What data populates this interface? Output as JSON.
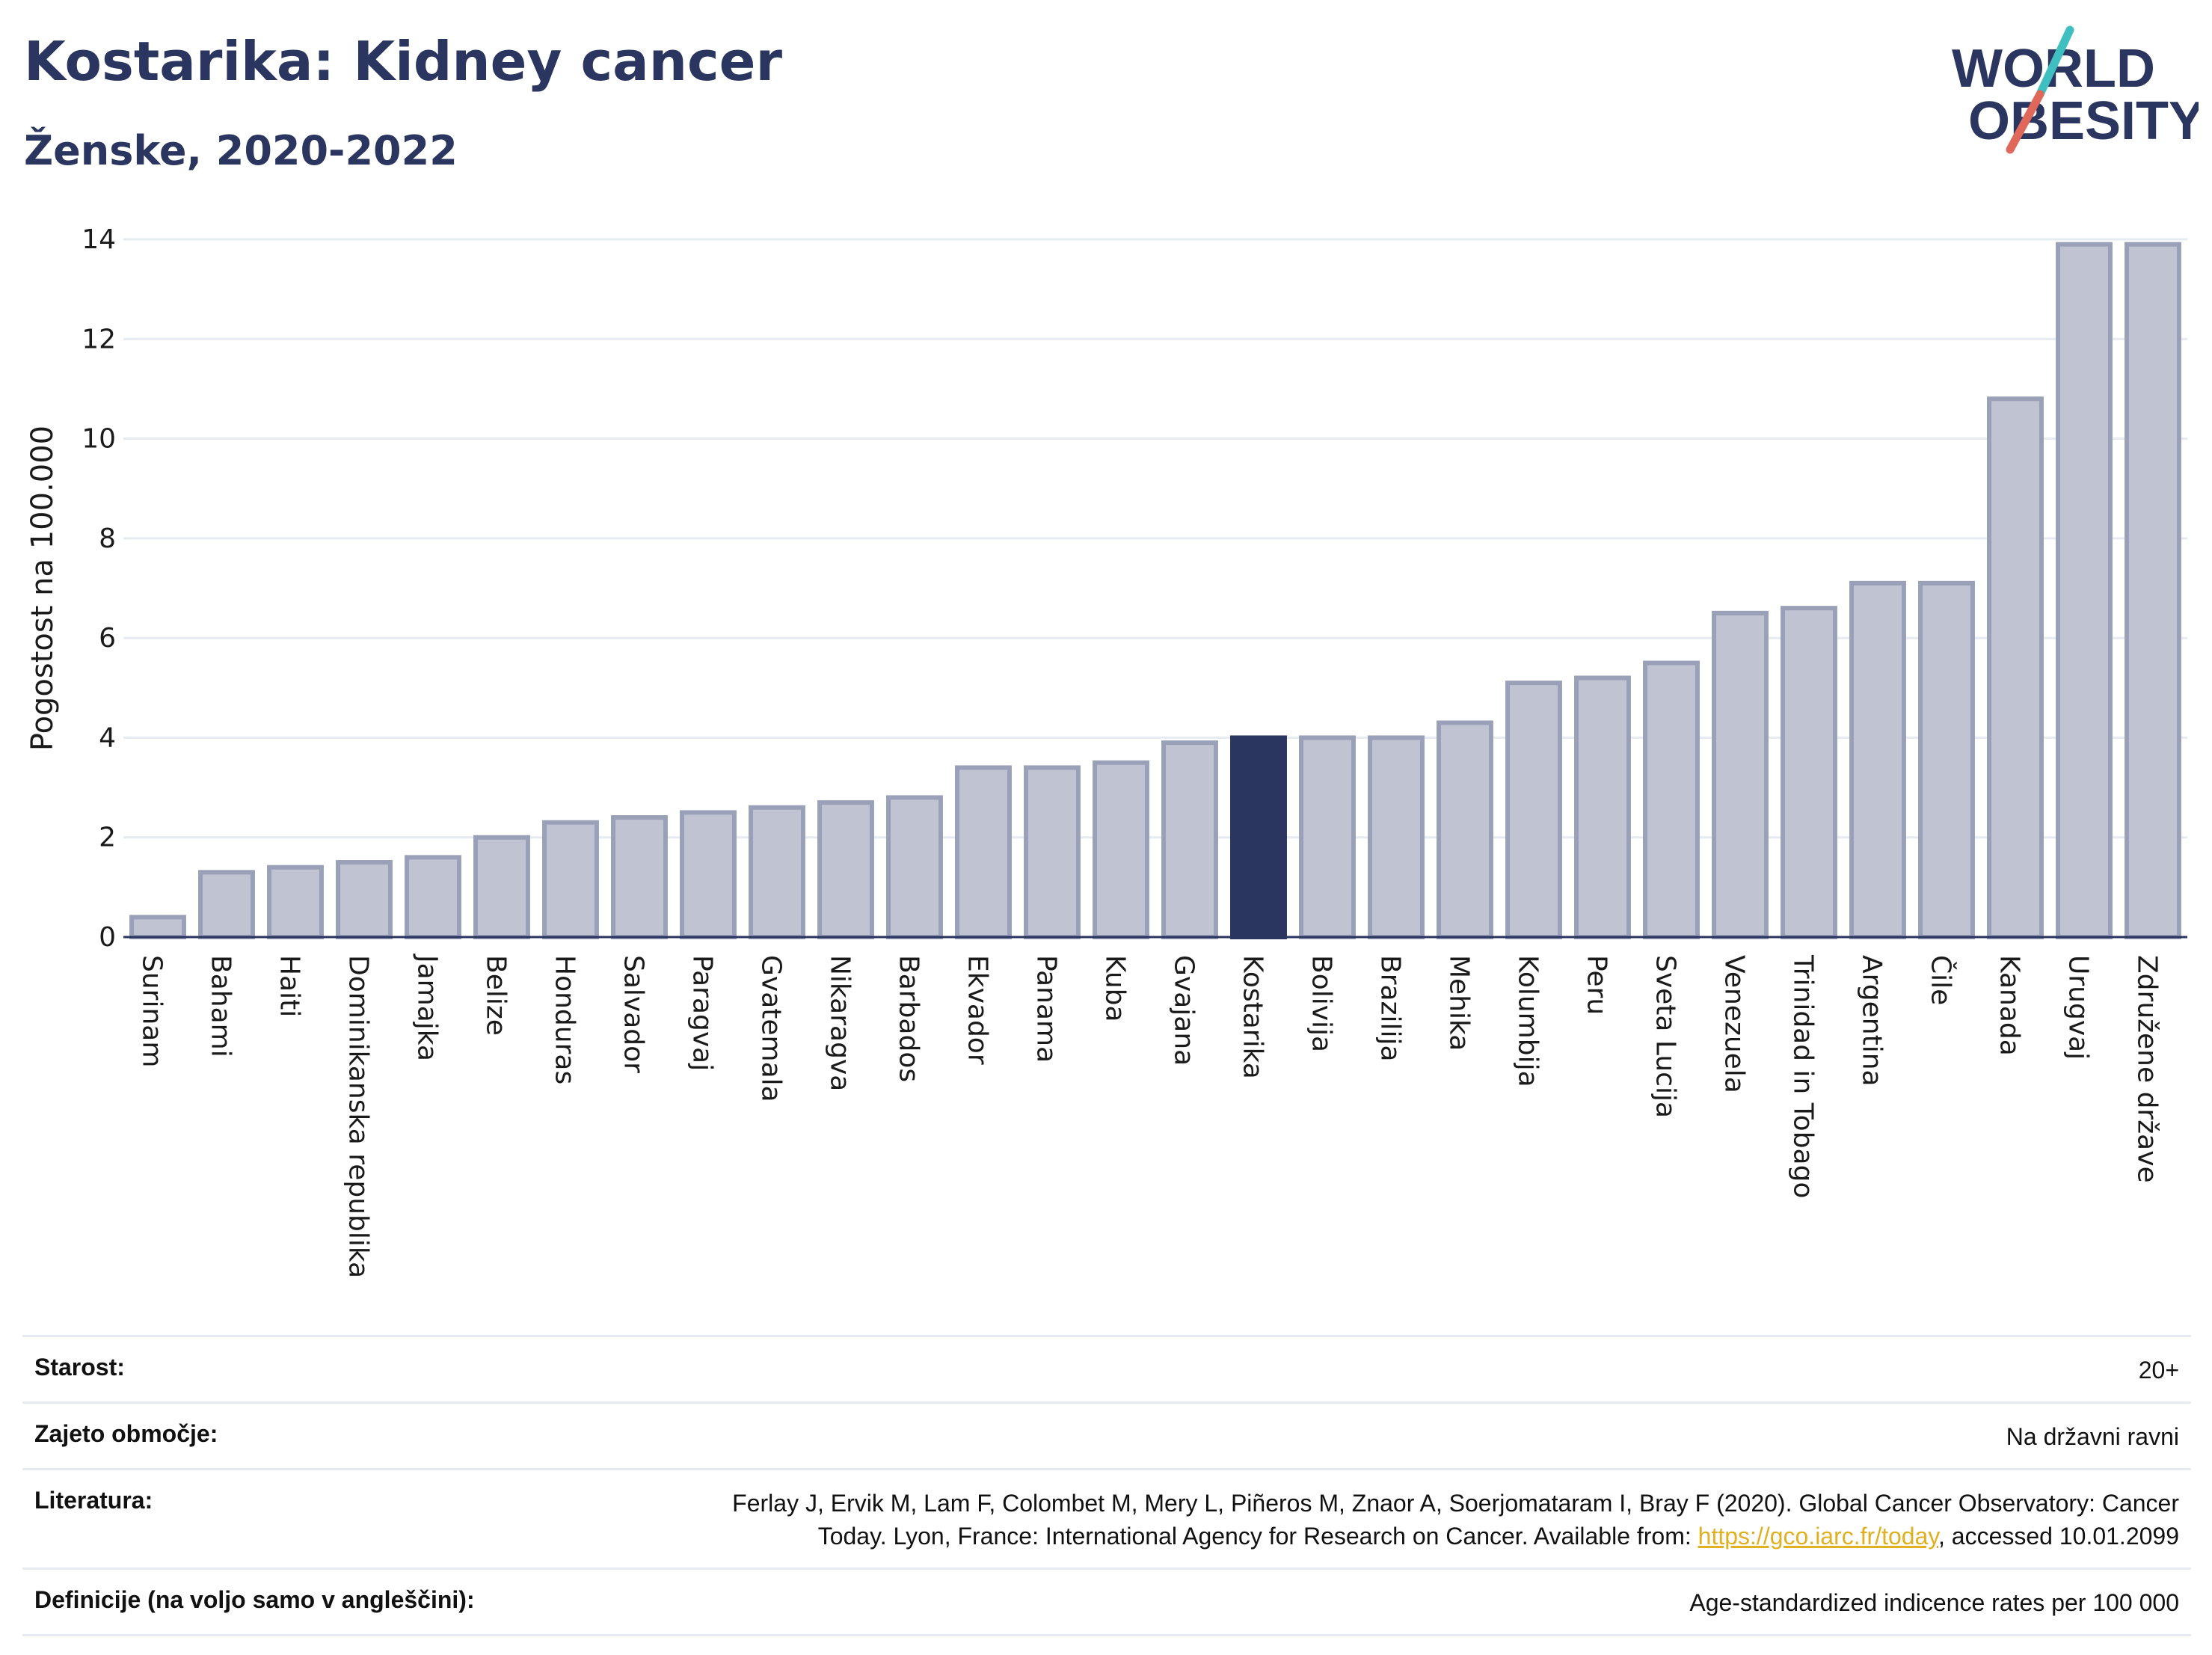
{
  "header": {
    "title": "Kostarika: Kidney cancer",
    "subtitle": "Ženske, 2020-2022"
  },
  "logo": {
    "line1": "WORLD",
    "line2": "OBESITY"
  },
  "chart_data": {
    "type": "bar",
    "ylabel": "Pogostost na 100.000",
    "xlabel": "",
    "ylim": [
      0,
      14
    ],
    "yticks": [
      0,
      2,
      4,
      6,
      8,
      10,
      12,
      14
    ],
    "grid": true,
    "highlight": "Kostarika",
    "colors": {
      "bar": "#c0c4d2",
      "bar_border": "#9aa0b8",
      "highlight": "#2a3560"
    },
    "categories": [
      "Surinam",
      "Bahami",
      "Haiti",
      "Dominikanska republika",
      "Jamajka",
      "Belize",
      "Honduras",
      "Salvador",
      "Paragvaj",
      "Gvatemala",
      "Nikaragva",
      "Barbados",
      "Ekvador",
      "Panama",
      "Kuba",
      "Gvajana",
      "Kostarika",
      "Bolivija",
      "Brazilija",
      "Mehika",
      "Kolumbija",
      "Peru",
      "Sveta Lucija",
      "Venezuela",
      "Trinidad in Tobago",
      "Argentina",
      "Čile",
      "Kanada",
      "Urugvaj",
      "Združene države"
    ],
    "values": [
      0.4,
      1.3,
      1.4,
      1.5,
      1.6,
      2.0,
      2.3,
      2.4,
      2.5,
      2.6,
      2.7,
      2.8,
      3.4,
      3.4,
      3.5,
      3.9,
      4.0,
      4.0,
      4.0,
      4.3,
      5.1,
      5.2,
      5.5,
      6.5,
      6.6,
      7.1,
      7.1,
      10.8,
      13.9,
      13.9
    ]
  },
  "info": {
    "age_label": "Starost:",
    "age_value": "20+",
    "area_label": "Zajeto območje:",
    "area_value": "Na državni ravni",
    "ref_label": "Literatura:",
    "ref_line1": "Ferlay J, Ervik M, Lam F, Colombet M, Mery L, Piñeros M, Znaor A, Soerjomataram I, Bray F (2020). Global Cancer Observatory: Cancer",
    "ref_line2_pre": "Today. Lyon, France: International Agency for Research on Cancer. Available from: ",
    "ref_link": "https://gco.iarc.fr/today",
    "ref_line2_post": ", accessed 10.01.2099",
    "def_label": "Definicije (na voljo samo v angleščini):",
    "def_value": "Age-standardized indicence rates per 100 000"
  }
}
